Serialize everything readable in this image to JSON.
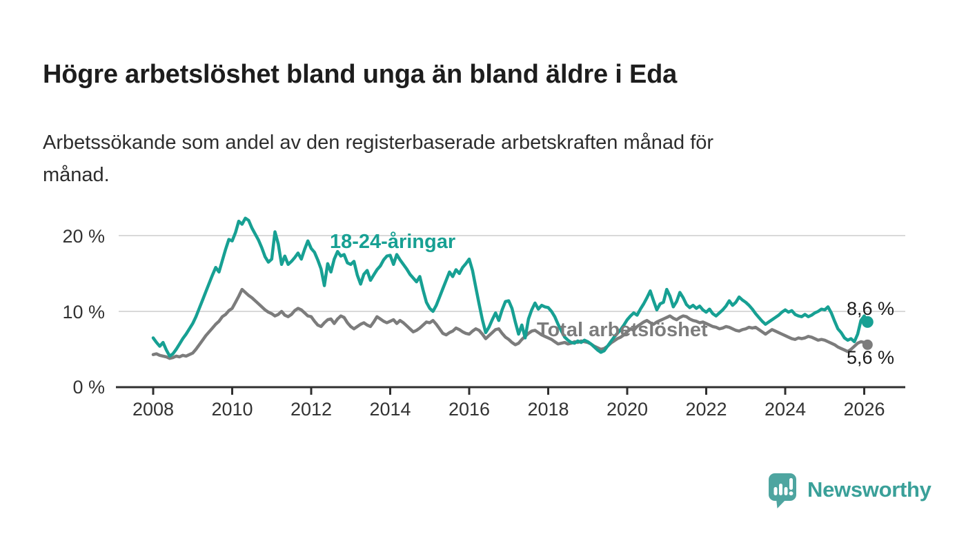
{
  "header": {
    "title": "Högre arbetslöshet bland unga än bland äldre i Eda",
    "subtitle": "Arbetssökande som andel av den registerbaserade arbetskraften månad för månad."
  },
  "chart_data": {
    "type": "line",
    "unit": "%",
    "grid": "horizontal",
    "legend_position": "inline-labels",
    "x_start_year": 2008,
    "x_step_months": 1,
    "x_ticks": [
      2008,
      2010,
      2012,
      2014,
      2016,
      2018,
      2020,
      2022,
      2024,
      2026
    ],
    "y_ticks": [
      0,
      10,
      20
    ],
    "y_tick_labels": [
      "20 %",
      "10 %",
      "0 %"
    ],
    "ylim": [
      0,
      24
    ],
    "series": [
      {
        "name": "18-24-åringar",
        "color": "#17a093",
        "end_label": "8,6 %",
        "end_value": 8.6,
        "values": [
          6.5,
          5.9,
          5.4,
          5.9,
          4.9,
          4.1,
          4.4,
          5.0,
          5.7,
          6.4,
          7.0,
          7.7,
          8.4,
          9.3,
          10.4,
          11.5,
          12.6,
          13.7,
          14.8,
          15.8,
          15.2,
          16.7,
          18.2,
          19.5,
          19.3,
          20.4,
          21.9,
          21.5,
          22.3,
          22.0,
          21.0,
          20.2,
          19.4,
          18.4,
          17.2,
          16.5,
          16.9,
          20.5,
          18.9,
          16.2,
          17.3,
          16.2,
          16.6,
          17.1,
          17.7,
          16.9,
          18.2,
          19.3,
          18.3,
          17.8,
          16.8,
          15.6,
          13.4,
          16.3,
          15.2,
          16.9,
          17.9,
          17.3,
          17.5,
          16.4,
          16.2,
          16.6,
          14.8,
          13.6,
          14.9,
          15.4,
          14.1,
          14.8,
          15.5,
          16.0,
          16.8,
          17.3,
          17.4,
          16.2,
          17.5,
          16.8,
          16.2,
          15.6,
          14.9,
          14.4,
          13.9,
          14.6,
          12.8,
          11.2,
          10.4,
          10.0,
          10.8,
          11.9,
          13.0,
          14.1,
          15.2,
          14.6,
          15.5,
          15.0,
          15.8,
          16.3,
          16.9,
          15.4,
          13.2,
          11.0,
          8.9,
          7.2,
          7.9,
          8.9,
          9.8,
          8.8,
          10.2,
          11.3,
          11.4,
          10.4,
          8.6,
          7.0,
          8.2,
          6.5,
          9.0,
          10.2,
          11.1,
          10.3,
          10.8,
          10.6,
          10.5,
          10.0,
          9.3,
          8.3,
          7.4,
          6.6,
          6.2,
          5.9,
          5.8,
          6.1,
          5.9,
          6.2,
          6.0,
          5.7,
          5.3,
          4.9,
          4.6,
          4.8,
          5.4,
          6.0,
          6.6,
          7.1,
          7.6,
          8.2,
          8.9,
          9.4,
          9.8,
          9.5,
          10.3,
          11.0,
          11.8,
          12.7,
          11.4,
          10.2,
          11.0,
          11.2,
          12.9,
          12.0,
          10.6,
          11.3,
          12.5,
          11.8,
          10.9,
          10.5,
          10.8,
          10.4,
          10.7,
          10.2,
          9.9,
          10.3,
          9.7,
          9.4,
          9.8,
          10.2,
          10.7,
          11.4,
          10.8,
          11.2,
          11.9,
          11.5,
          11.2,
          10.8,
          10.3,
          9.7,
          9.2,
          8.7,
          8.3,
          8.6,
          8.9,
          9.2,
          9.5,
          9.9,
          10.2,
          9.9,
          10.1,
          9.6,
          9.4,
          9.3,
          9.6,
          9.3,
          9.5,
          9.8,
          10.0,
          10.3,
          10.2,
          10.6,
          9.8,
          8.7,
          7.7,
          7.2,
          6.5,
          6.2,
          6.4,
          6.0,
          7.0,
          8.8,
          9.4,
          8.6
        ]
      },
      {
        "name": "Total arbetslöshet",
        "color": "#7c7c7c",
        "end_label": "5,6 %",
        "end_value": 5.6,
        "values": [
          4.3,
          4.4,
          4.2,
          4.1,
          4.0,
          3.8,
          3.9,
          4.1,
          4.0,
          4.2,
          4.1,
          4.3,
          4.5,
          5.0,
          5.6,
          6.2,
          6.8,
          7.3,
          7.8,
          8.3,
          8.7,
          9.3,
          9.6,
          10.1,
          10.4,
          11.2,
          12.0,
          12.9,
          12.5,
          12.1,
          11.8,
          11.4,
          11.0,
          10.6,
          10.2,
          9.9,
          9.7,
          9.4,
          9.6,
          10.0,
          9.5,
          9.3,
          9.6,
          10.1,
          10.4,
          10.2,
          9.8,
          9.4,
          9.3,
          8.7,
          8.2,
          8.0,
          8.5,
          8.9,
          9.0,
          8.4,
          9.0,
          9.4,
          9.2,
          8.5,
          8.0,
          7.7,
          8.0,
          8.3,
          8.5,
          8.2,
          8.0,
          8.6,
          9.3,
          9.0,
          8.7,
          8.5,
          8.7,
          8.9,
          8.4,
          8.8,
          8.5,
          8.1,
          7.7,
          7.3,
          7.5,
          7.8,
          8.2,
          8.6,
          8.5,
          8.8,
          8.3,
          7.7,
          7.1,
          6.9,
          7.2,
          7.4,
          7.8,
          7.6,
          7.3,
          7.1,
          7.0,
          7.4,
          7.7,
          7.5,
          7.0,
          6.4,
          6.8,
          7.2,
          7.6,
          7.7,
          7.1,
          6.6,
          6.3,
          5.9,
          5.6,
          5.8,
          6.3,
          6.7,
          7.1,
          7.4,
          7.5,
          7.2,
          6.9,
          6.7,
          6.5,
          6.3,
          6.0,
          5.7,
          5.8,
          5.9,
          5.7,
          5.8,
          6.0,
          5.9,
          6.1,
          6.0,
          5.9,
          5.7,
          5.4,
          5.2,
          5.0,
          5.1,
          5.4,
          5.8,
          6.1,
          6.4,
          6.6,
          6.9,
          7.3,
          7.7,
          7.5,
          8.0,
          8.3,
          8.6,
          8.8,
          8.5,
          8.3,
          8.6,
          8.8,
          9.0,
          9.2,
          9.4,
          9.1,
          8.9,
          9.2,
          9.4,
          9.3,
          9.0,
          8.8,
          8.7,
          8.5,
          8.6,
          8.4,
          8.2,
          8.0,
          7.9,
          7.7,
          7.8,
          8.0,
          7.9,
          7.7,
          7.5,
          7.4,
          7.6,
          7.7,
          7.9,
          7.8,
          7.9,
          7.6,
          7.3,
          7.0,
          7.3,
          7.6,
          7.4,
          7.2,
          7.0,
          6.8,
          6.6,
          6.4,
          6.3,
          6.5,
          6.4,
          6.5,
          6.7,
          6.6,
          6.4,
          6.2,
          6.3,
          6.2,
          6.0,
          5.8,
          5.6,
          5.3,
          5.1,
          4.9,
          4.7,
          5.0,
          5.4,
          5.8,
          6.0,
          5.9,
          5.6
        ]
      }
    ]
  },
  "footer": {
    "brand": "Newsworthy"
  },
  "colors": {
    "accent_teal": "#17a093",
    "series_gray": "#7c7c7c",
    "grid": "#d9d9d9",
    "axis": "#2f2f2f",
    "logo_bubble": "#4ea5a0",
    "logo_text": "#3aa099"
  }
}
